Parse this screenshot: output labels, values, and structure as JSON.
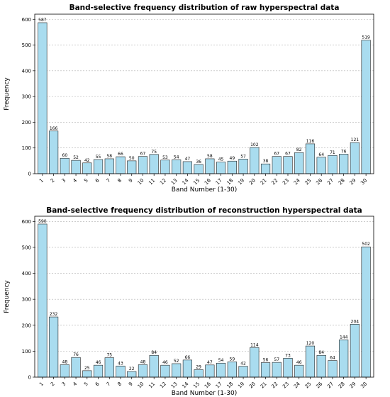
{
  "chart_data": [
    {
      "type": "bar",
      "title": "Band-selective frequency distribution of raw hyperspectral data",
      "xlabel": "Band Number (1-30)",
      "ylabel": "Frequency",
      "categories": [
        "1",
        "2",
        "3",
        "4",
        "5",
        "6",
        "7",
        "8",
        "9",
        "10",
        "11",
        "12",
        "13",
        "14",
        "15",
        "16",
        "17",
        "18",
        "19",
        "20",
        "21",
        "22",
        "23",
        "24",
        "25",
        "26",
        "27",
        "28",
        "29",
        "30"
      ],
      "values": [
        587,
        166,
        60,
        52,
        42,
        55,
        58,
        66,
        50,
        67,
        75,
        53,
        54,
        47,
        36,
        58,
        45,
        49,
        57,
        102,
        38,
        67,
        67,
        82,
        116,
        64,
        71,
        76,
        121,
        519
      ],
      "ylim": [
        0,
        620
      ],
      "yticks": [
        0,
        100,
        200,
        300,
        400,
        500,
        600
      ],
      "grid": "y",
      "bar_color": "#a9dcef"
    },
    {
      "type": "bar",
      "title": "Band-selective frequency distribution of reconstruction hyperspectral data",
      "xlabel": "Band Number (1-30)",
      "ylabel": "Frequency",
      "categories": [
        "1",
        "2",
        "3",
        "4",
        "5",
        "6",
        "7",
        "8",
        "9",
        "10",
        "11",
        "12",
        "13",
        "14",
        "15",
        "16",
        "17",
        "18",
        "19",
        "20",
        "21",
        "22",
        "23",
        "24",
        "25",
        "26",
        "27",
        "28",
        "29",
        "30"
      ],
      "values": [
        590,
        232,
        48,
        76,
        25,
        46,
        75,
        43,
        22,
        48,
        84,
        46,
        52,
        66,
        29,
        47,
        54,
        59,
        42,
        114,
        56,
        57,
        73,
        46,
        120,
        84,
        64,
        144,
        204,
        502
      ],
      "ylim": [
        0,
        620
      ],
      "yticks": [
        0,
        100,
        200,
        300,
        400,
        500,
        600
      ],
      "grid": "y",
      "bar_color": "#a9dcef"
    }
  ]
}
